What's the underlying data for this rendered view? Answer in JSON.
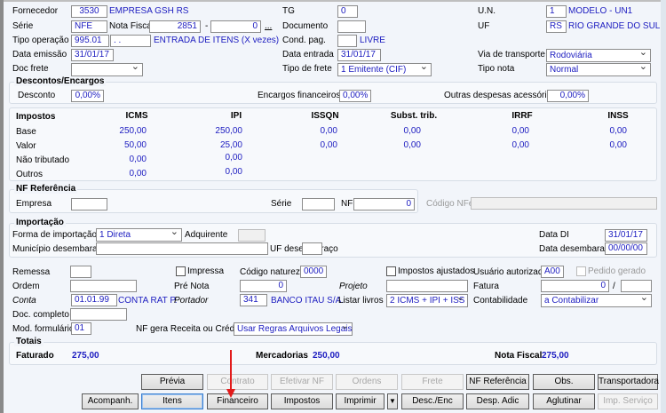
{
  "header": {
    "fornecedor": {
      "label": "Fornecedor",
      "code": "3530",
      "name": "EMPRESA GSH RS"
    },
    "serie": {
      "label": "Série",
      "value": "NFE"
    },
    "nota_fiscal": {
      "label": "Nota Fiscal",
      "number": "2851",
      "separator": "-",
      "suffix": "0",
      "lookup": "..."
    },
    "tipo_operacao": {
      "label": "Tipo operação",
      "code": "995.01",
      "sub": ". .",
      "description": "ENTRADA DE ITENS (X vezes)"
    },
    "data_emissao": {
      "label": "Data emissão",
      "value": "31/01/17"
    },
    "doc_frete": {
      "label": "Doc frete",
      "value": ""
    },
    "tg": {
      "label": "TG",
      "value": "0"
    },
    "documento": {
      "label": "Documento",
      "value": ""
    },
    "cond_pag": {
      "label": "Cond. pag.",
      "value": "",
      "description": "LIVRE"
    },
    "data_entrada": {
      "label": "Data entrada",
      "value": "31/01/17"
    },
    "tipo_frete": {
      "label": "Tipo de frete",
      "value": "1 Emitente (CIF)"
    },
    "un": {
      "label": "U.N.",
      "code": "1",
      "name": "MODELO - UN1"
    },
    "uf": {
      "label": "UF",
      "code": "RS",
      "name": "RIO GRANDE DO SUL"
    },
    "via_transporte": {
      "label": "Via de transporte",
      "value": "Rodoviária"
    },
    "tipo_nota": {
      "label": "Tipo nota",
      "value": "Normal"
    }
  },
  "descontos": {
    "title": "Descontos/Encargos",
    "desconto_label": "Desconto",
    "desconto": "0,00%",
    "encargos_label": "Encargos financeiros",
    "encargos": "0,00%",
    "outras_label": "Outras despesas acessórias",
    "outras": "0,00%"
  },
  "impostos": {
    "title": "Impostos",
    "columns": [
      "ICMS",
      "IPI",
      "ISSQN",
      "Subst. trib.",
      "IRRF",
      "INSS"
    ],
    "rows": [
      {
        "label": "Base",
        "values": [
          "250,00",
          "250,00",
          "0,00",
          "0,00",
          "0,00",
          "0,00"
        ]
      },
      {
        "label": "Valor",
        "values": [
          "50,00",
          "25,00",
          "0,00",
          "0,00",
          "0,00",
          "0,00"
        ]
      },
      {
        "label": "Não tributado",
        "values": [
          "0,00",
          "0,00"
        ]
      },
      {
        "label": "Outros",
        "values": [
          "0,00",
          "0,00"
        ]
      }
    ]
  },
  "nf_referencia": {
    "title": "NF Referência",
    "empresa_label": "Empresa",
    "empresa": "",
    "serie_label": "Série",
    "serie": "",
    "nf_label": "NF",
    "nf": "0",
    "codigo_nfe_label": "Código NFe",
    "codigo_nfe": ""
  },
  "importacao": {
    "title": "Importação",
    "forma_label": "Forma de importação",
    "forma": "1 Direta",
    "adquirente_label": "Adquirente",
    "data_di_label": "Data DI",
    "data_di": "31/01/17",
    "municipio_label": "Município desembaraço",
    "municipio": "",
    "uf_label": "UF desembaraço",
    "uf": "",
    "data_desemb_label": "Data desembaraço",
    "data_desemb": "00/00/00"
  },
  "outros": {
    "remessa_label": "Remessa",
    "remessa": "",
    "impressa_label": "Impressa",
    "codigo_natureza_label": "Código natureza",
    "codigo_natureza": "0000",
    "impostos_ajustados_label": "Impostos ajustados",
    "usuario_label": "Usuário autorizado",
    "usuario": "A00",
    "pedido_gerado_label": "Pedido gerado",
    "ordem_label": "Ordem",
    "ordem": "",
    "pre_nota_label": "Pré Nota",
    "pre_nota": "0",
    "projeto_label": "Projeto",
    "projeto": "",
    "fatura_label": "Fatura",
    "fatura": "0",
    "fatura_sep": "/",
    "fatura2": "",
    "conta_label": "Conta",
    "conta": "01.01.99",
    "conta_name": "CONTA RAT P.",
    "portador_label": "Portador",
    "portador": "341",
    "portador_name": "BANCO ITAU S/A.",
    "listar_livros_label": "Listar livros",
    "listar_livros": "2 ICMS + IPI + ISS",
    "contabilidade_label": "Contabilidade",
    "contabilidade": "a Contabilizar",
    "doc_completo_label": "Doc. completo",
    "doc_completo": "",
    "mod_formulario_label": "Mod. formulário",
    "mod_formulario": "01",
    "nf_gera_label": "NF gera Receita ou Crédito",
    "nf_gera": "Usar Regras Arquivos Legais"
  },
  "totais": {
    "title": "Totais",
    "faturado_label": "Faturado",
    "faturado": "275,00",
    "mercadorias_label": "Mercadorias",
    "mercadorias": "250,00",
    "nota_fiscal_label": "Nota Fiscal",
    "nota_fiscal": "275,00"
  },
  "buttons": {
    "previa": "Prévia",
    "contrato": "Contrato",
    "efetivar_nf": "Efetivar NF",
    "ordens": "Ordens",
    "frete": "Frete",
    "nf_referencia": "NF Referência",
    "obs": "Obs.",
    "transportadora": "Transportadora",
    "acompanh": "Acompanh.",
    "itens": "Itens",
    "financeiro": "Financeiro",
    "impostos": "Impostos",
    "imprimir": "Imprimir",
    "desc_enc": "Desc./Enc",
    "desp_adic": "Desp. Adic",
    "aglutinar": "Aglutinar",
    "imp_servico": "Imp. Serviço"
  },
  "colors": {
    "value_text": "#1c1cc0",
    "annotation_arrow": "#e21b1b"
  }
}
